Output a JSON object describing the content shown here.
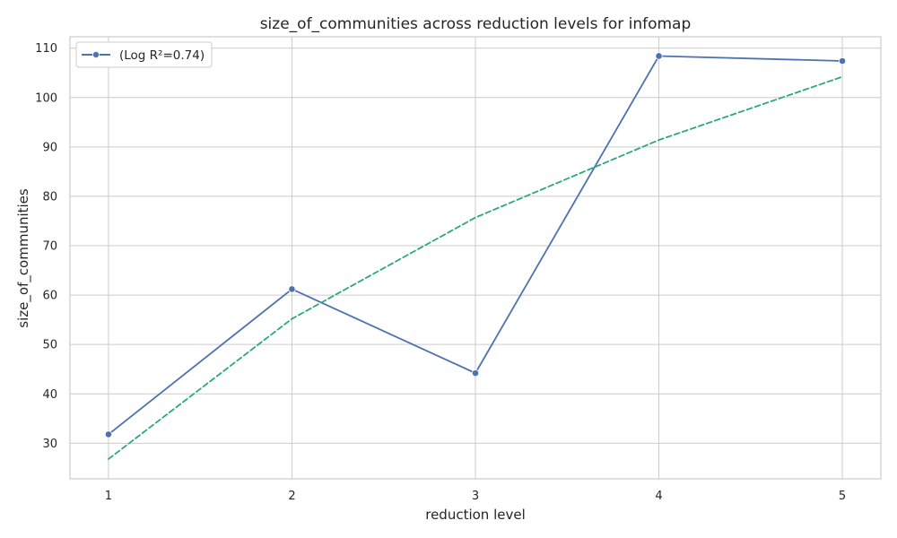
{
  "chart_data": {
    "type": "line",
    "title": "size_of_communities across reduction levels for infomap",
    "xlabel": "reduction level",
    "ylabel": "size_of_communities",
    "x": [
      1,
      2,
      3,
      4,
      5
    ],
    "xlim": [
      0.79,
      5.21
    ],
    "ylim": [
      22.8,
      112.3
    ],
    "xticks": [
      1,
      2,
      3,
      4,
      5
    ],
    "yticks": [
      30,
      40,
      50,
      60,
      70,
      80,
      90,
      100,
      110
    ],
    "grid": true,
    "legend": {
      "position": "top-left",
      "entries": [
        "(Log R²=0.74)"
      ]
    },
    "series": [
      {
        "name": "(Log R²=0.74)",
        "values": [
          31.8,
          61.2,
          44.2,
          108.4,
          107.4
        ],
        "color": "#4c72b0",
        "style": "solid",
        "marker": "circle"
      },
      {
        "values": [
          26.8,
          55.2,
          75.7,
          91.4,
          104.2
        ],
        "color": "#2ca87f",
        "style": "dashed",
        "marker": "none"
      }
    ]
  }
}
